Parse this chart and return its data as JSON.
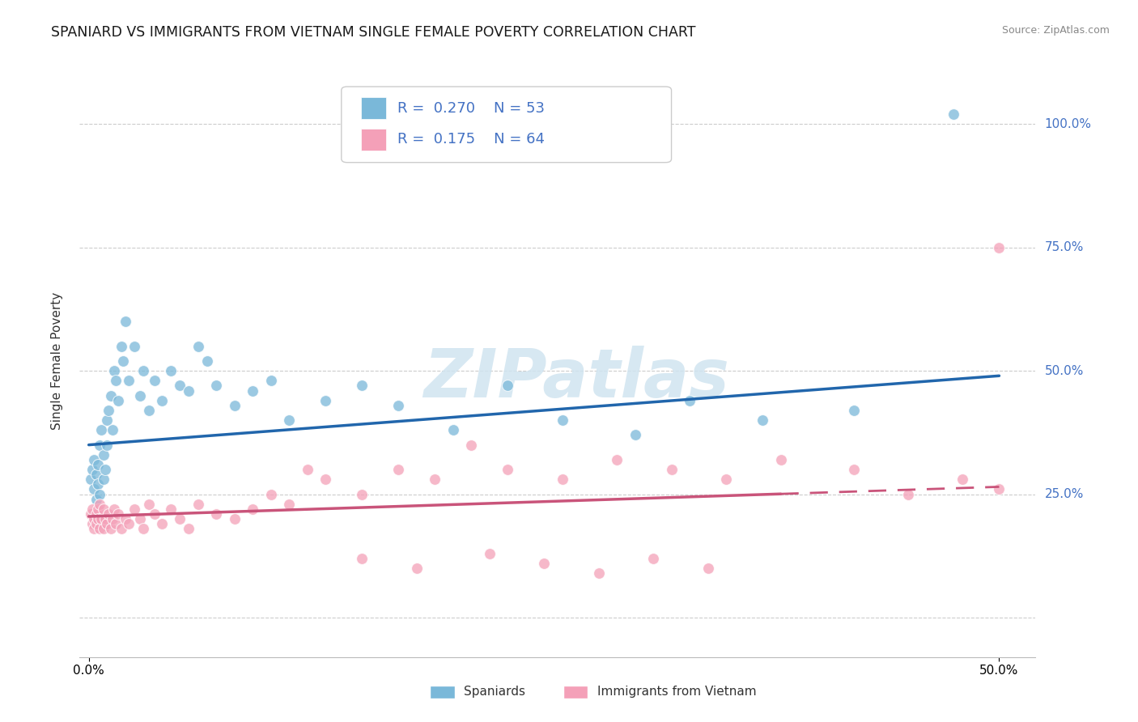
{
  "title": "SPANIARD VS IMMIGRANTS FROM VIETNAM SINGLE FEMALE POVERTY CORRELATION CHART",
  "source": "Source: ZipAtlas.com",
  "ylabel": "Single Female Poverty",
  "xlim": [
    -0.005,
    0.52
  ],
  "ylim": [
    -0.08,
    1.12
  ],
  "ytick_positions": [
    0.0,
    0.25,
    0.5,
    0.75,
    1.0
  ],
  "ytick_labels": [
    "",
    "25.0%",
    "50.0%",
    "75.0%",
    "100.0%"
  ],
  "blue_color": "#7ab8d9",
  "pink_color": "#f4a0b8",
  "blue_line_color": "#2166ac",
  "pink_line_color": "#c9547a",
  "watermark_text": "ZIPatlas",
  "watermark_color": "#d0e4f0",
  "legend_r1": "0.270",
  "legend_n1": "53",
  "legend_r2": "0.175",
  "legend_n2": "64",
  "spaniards_label": "Spaniards",
  "vietnam_label": "Immigrants from Vietnam",
  "blue_x": [
    0.001,
    0.002,
    0.003,
    0.003,
    0.004,
    0.004,
    0.005,
    0.005,
    0.006,
    0.006,
    0.007,
    0.008,
    0.008,
    0.009,
    0.01,
    0.01,
    0.011,
    0.012,
    0.013,
    0.014,
    0.015,
    0.016,
    0.018,
    0.019,
    0.02,
    0.022,
    0.025,
    0.028,
    0.03,
    0.033,
    0.036,
    0.04,
    0.045,
    0.05,
    0.055,
    0.06,
    0.065,
    0.07,
    0.08,
    0.09,
    0.1,
    0.11,
    0.13,
    0.15,
    0.17,
    0.2,
    0.23,
    0.26,
    0.3,
    0.33,
    0.37,
    0.42,
    0.475
  ],
  "blue_y": [
    0.28,
    0.3,
    0.26,
    0.32,
    0.24,
    0.29,
    0.31,
    0.27,
    0.35,
    0.25,
    0.38,
    0.28,
    0.33,
    0.3,
    0.4,
    0.35,
    0.42,
    0.45,
    0.38,
    0.5,
    0.48,
    0.44,
    0.55,
    0.52,
    0.6,
    0.48,
    0.55,
    0.45,
    0.5,
    0.42,
    0.48,
    0.44,
    0.5,
    0.47,
    0.46,
    0.55,
    0.52,
    0.47,
    0.43,
    0.46,
    0.48,
    0.4,
    0.44,
    0.47,
    0.43,
    0.38,
    0.47,
    0.4,
    0.37,
    0.44,
    0.4,
    0.42,
    1.02
  ],
  "pink_x": [
    0.001,
    0.002,
    0.002,
    0.003,
    0.003,
    0.004,
    0.004,
    0.005,
    0.005,
    0.006,
    0.006,
    0.007,
    0.008,
    0.008,
    0.009,
    0.01,
    0.011,
    0.012,
    0.013,
    0.014,
    0.015,
    0.016,
    0.018,
    0.02,
    0.022,
    0.025,
    0.028,
    0.03,
    0.033,
    0.036,
    0.04,
    0.045,
    0.05,
    0.055,
    0.06,
    0.07,
    0.08,
    0.09,
    0.1,
    0.11,
    0.12,
    0.13,
    0.15,
    0.17,
    0.19,
    0.21,
    0.23,
    0.26,
    0.29,
    0.32,
    0.35,
    0.38,
    0.42,
    0.45,
    0.48,
    0.5,
    0.5,
    0.15,
    0.18,
    0.22,
    0.25,
    0.28,
    0.31,
    0.34
  ],
  "pink_y": [
    0.21,
    0.19,
    0.22,
    0.2,
    0.18,
    0.21,
    0.19,
    0.22,
    0.2,
    0.18,
    0.23,
    0.2,
    0.18,
    0.22,
    0.2,
    0.19,
    0.21,
    0.18,
    0.2,
    0.22,
    0.19,
    0.21,
    0.18,
    0.2,
    0.19,
    0.22,
    0.2,
    0.18,
    0.23,
    0.21,
    0.19,
    0.22,
    0.2,
    0.18,
    0.23,
    0.21,
    0.2,
    0.22,
    0.25,
    0.23,
    0.3,
    0.28,
    0.25,
    0.3,
    0.28,
    0.35,
    0.3,
    0.28,
    0.32,
    0.3,
    0.28,
    0.32,
    0.3,
    0.25,
    0.28,
    0.26,
    0.75,
    0.12,
    0.1,
    0.13,
    0.11,
    0.09,
    0.12,
    0.1
  ],
  "blue_regression": [
    0.35,
    0.49
  ],
  "pink_regression_solid_end": 0.38,
  "pink_regression": [
    0.205,
    0.265
  ]
}
